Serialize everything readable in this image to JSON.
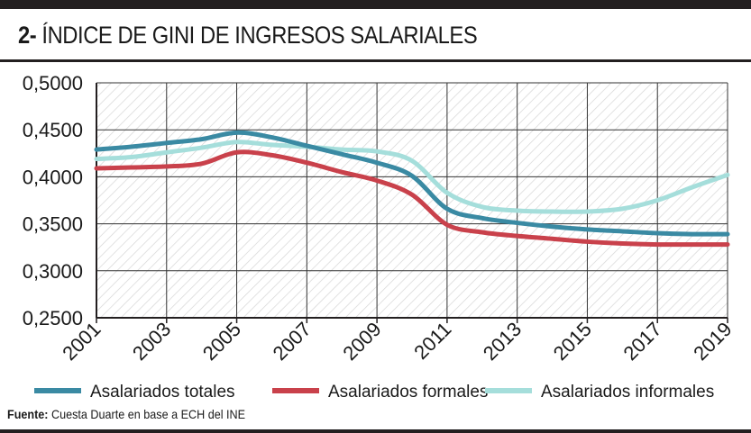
{
  "header": {
    "number": "2-",
    "title": "ÍNDICE DE GINI DE INGRESOS SALARIALES"
  },
  "source": {
    "label": "Fuente:",
    "text": "Cuesta Duarte en base a ECH del INE"
  },
  "colors": {
    "totales": "#3a8aa3",
    "formales": "#c9414b",
    "informales": "#a5dedb",
    "grid": "#333333",
    "hatch": "#d6d6d6"
  },
  "chart_data": {
    "type": "line",
    "title": "ÍNDICE DE GINI DE INGRESOS SALARIALES",
    "xlabel": "",
    "ylabel": "",
    "x": [
      2001,
      2002,
      2003,
      2004,
      2005,
      2006,
      2007,
      2008,
      2009,
      2010,
      2011,
      2012,
      2013,
      2014,
      2015,
      2016,
      2017,
      2018,
      2019
    ],
    "x_ticks": [
      "2001",
      "2003",
      "2005",
      "2007",
      "2009",
      "2011",
      "2013",
      "2015",
      "2017",
      "2019"
    ],
    "y_ticks": [
      "0,2500",
      "0,3000",
      "0,3500",
      "0,4000",
      "0,4500",
      "0,5000"
    ],
    "ylim": [
      0.25,
      0.5
    ],
    "grid": true,
    "legend_position": "bottom",
    "series": [
      {
        "name": "Asalariados totales",
        "color": "#3a8aa3",
        "values": [
          0.429,
          0.432,
          0.436,
          0.44,
          0.447,
          0.442,
          0.433,
          0.424,
          0.415,
          0.401,
          0.366,
          0.356,
          0.351,
          0.347,
          0.344,
          0.342,
          0.34,
          0.339,
          0.339
        ]
      },
      {
        "name": "Asalariados formales",
        "color": "#c9414b",
        "values": [
          0.409,
          0.41,
          0.411,
          0.414,
          0.426,
          0.423,
          0.415,
          0.405,
          0.396,
          0.381,
          0.349,
          0.341,
          0.337,
          0.334,
          0.331,
          0.329,
          0.328,
          0.328,
          0.328
        ]
      },
      {
        "name": "Asalariados informales",
        "color": "#a5dedb",
        "values": [
          0.419,
          0.421,
          0.426,
          0.431,
          0.437,
          0.434,
          0.432,
          0.429,
          0.427,
          0.417,
          0.383,
          0.368,
          0.364,
          0.363,
          0.363,
          0.366,
          0.375,
          0.389,
          0.402
        ]
      }
    ]
  }
}
